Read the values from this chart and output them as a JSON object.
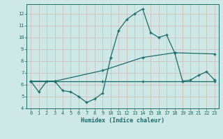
{
  "xlabel": "Humidex (Indice chaleur)",
  "xlim": [
    -0.5,
    23.5
  ],
  "ylim": [
    4,
    12.8
  ],
  "yticks": [
    4,
    5,
    6,
    7,
    8,
    9,
    10,
    11,
    12
  ],
  "xticks": [
    0,
    1,
    2,
    3,
    4,
    5,
    6,
    7,
    8,
    9,
    10,
    11,
    12,
    13,
    14,
    15,
    16,
    17,
    18,
    19,
    20,
    21,
    22,
    23
  ],
  "bg_color": "#cde8e5",
  "grid_color": "#b5d5d2",
  "line_color": "#1a6b6b",
  "series1_x": [
    0,
    1,
    2,
    3,
    4,
    5,
    6,
    7,
    8,
    9,
    10,
    11,
    12,
    13,
    14,
    15,
    16,
    17,
    18,
    19,
    20,
    21,
    22,
    23
  ],
  "series1_y": [
    6.3,
    5.4,
    6.3,
    6.3,
    5.5,
    5.4,
    5.0,
    4.5,
    4.8,
    5.3,
    8.3,
    10.6,
    11.5,
    12.0,
    12.4,
    10.4,
    10.0,
    10.2,
    8.7,
    6.3,
    6.4,
    6.8,
    7.1,
    6.4
  ],
  "series2_x": [
    0,
    3,
    9,
    14,
    19,
    23
  ],
  "series2_y": [
    6.3,
    6.3,
    6.3,
    6.3,
    6.3,
    6.3
  ],
  "series3_x": [
    0,
    3,
    9,
    14,
    18,
    23
  ],
  "series3_y": [
    6.3,
    6.3,
    7.2,
    8.3,
    8.7,
    8.6
  ]
}
